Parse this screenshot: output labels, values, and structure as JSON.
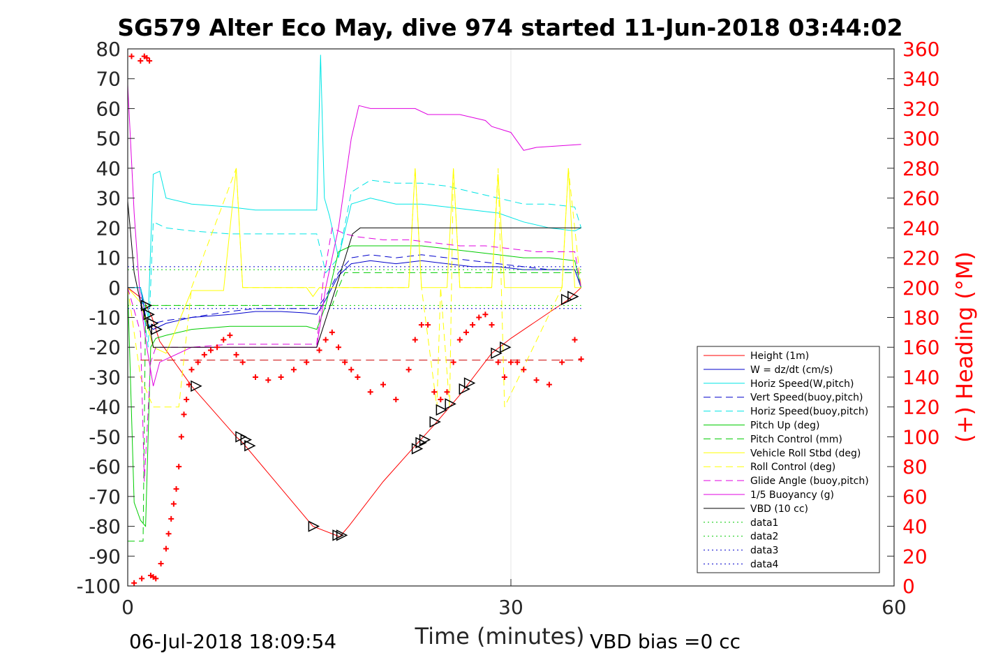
{
  "chart_data": {
    "type": "line",
    "title": "SG579 Alter Eco May, dive 974 started 11-Jun-2018 03:44:02",
    "xlabel": "Time (minutes)",
    "ylabel": "",
    "y2label": "(+) Heading (°M)",
    "xlim": [
      0,
      60
    ],
    "ylim": [
      -100,
      80
    ],
    "y2lim": [
      0,
      360
    ],
    "xticks": [
      "0",
      "30",
      "60"
    ],
    "xtick_values": [
      0,
      30,
      60
    ],
    "yticks": [
      "80",
      "70",
      "60",
      "50",
      "40",
      "30",
      "20",
      "10",
      "0",
      "-10",
      "-20",
      "-30",
      "-40",
      "-50",
      "-60",
      "-70",
      "-80",
      "-90",
      "-100"
    ],
    "ytick_values": [
      80,
      70,
      60,
      50,
      40,
      30,
      20,
      10,
      0,
      -10,
      -20,
      -30,
      -40,
      -50,
      -60,
      -70,
      -80,
      -90,
      -100
    ],
    "y2ticks": [
      "360",
      "340",
      "320",
      "300",
      "280",
      "260",
      "240",
      "220",
      "200",
      "180",
      "160",
      "140",
      "120",
      "100",
      "80",
      "60",
      "40",
      "20",
      "0"
    ],
    "y2tick_values": [
      360,
      340,
      320,
      300,
      280,
      260,
      240,
      220,
      200,
      180,
      160,
      140,
      120,
      100,
      80,
      60,
      40,
      20,
      0
    ],
    "grid_x": [
      30
    ],
    "legend_position": "lower-right",
    "footer_left": "06-Jul-2018 18:09:54",
    "footer_right": "VBD bias =0 cc",
    "series": [
      {
        "name": "Height (1m)",
        "color": "#ff0000",
        "style": "solid",
        "x": [
          0,
          1.2,
          1.9,
          2.5,
          5,
          8.5,
          9,
          14.5,
          16.3,
          16.6,
          17.3,
          20,
          22.5,
          24,
          26,
          28.5,
          30,
          34.5,
          35.5
        ],
        "y": [
          0,
          -4,
          -10,
          -18,
          -33,
          -50,
          -52,
          -80,
          -83,
          -83.5,
          -80,
          -65,
          -53,
          -46,
          -36,
          -22,
          -17,
          -4,
          0
        ]
      },
      {
        "name": "W = dz/dt (cm/s)",
        "color": "#0000cc",
        "style": "solid",
        "x": [
          0,
          1,
          1.5,
          2,
          3,
          5,
          8,
          10,
          12,
          14,
          14.8,
          15.5,
          16.5,
          17.5,
          19,
          21,
          23,
          25,
          27,
          29,
          31,
          33,
          35,
          35.5
        ],
        "y": [
          0,
          0,
          -12,
          -14,
          -12,
          -10,
          -9,
          -8,
          -8,
          -8.5,
          -9,
          -4,
          4,
          8,
          9,
          8,
          9,
          8,
          7,
          7,
          6,
          6,
          6,
          0
        ]
      },
      {
        "name": "Horiz Speed(W,pitch)",
        "color": "#00e5e5",
        "style": "solid",
        "x": [
          0,
          1,
          1.6,
          2,
          2.5,
          3,
          5,
          8,
          10,
          12,
          14,
          14.8,
          15.1,
          15.4,
          15.8,
          16.5,
          17.5,
          19,
          21,
          23,
          25,
          27,
          29,
          31,
          33,
          35,
          35.5
        ],
        "y": [
          0,
          0,
          -10,
          38,
          39,
          30,
          28,
          27,
          26,
          26,
          26,
          26,
          78,
          30,
          24,
          10,
          28,
          30,
          28,
          28,
          27,
          26,
          25,
          22,
          20,
          19,
          20
        ]
      },
      {
        "name": "Vert Speed(buoy,pitch)",
        "color": "#0000cc",
        "style": "dash",
        "x": [
          0,
          1,
          1.5,
          2,
          3,
          5,
          8,
          10,
          12,
          14,
          14.8,
          15.5,
          16.5,
          17.5,
          19,
          21,
          23,
          25,
          27,
          29,
          31,
          33,
          35,
          35.5
        ],
        "y": [
          0,
          0,
          -14,
          -12,
          -11,
          -10,
          -8,
          -7,
          -7,
          -7,
          -7,
          -3,
          5,
          10,
          11,
          10,
          11,
          10,
          9,
          8,
          7,
          6,
          6,
          0
        ]
      },
      {
        "name": "Horiz Speed(buoy,pitch)",
        "color": "#00e5e5",
        "style": "dash",
        "x": [
          0,
          1,
          1.6,
          2,
          3,
          5,
          8,
          10,
          12,
          14,
          14.8,
          15.5,
          16.5,
          17.5,
          19,
          21,
          23,
          25,
          27,
          29,
          31,
          33,
          35,
          35.5
        ],
        "y": [
          0,
          0,
          -20,
          22,
          20,
          19,
          18,
          18,
          18,
          18,
          18,
          5,
          10,
          32,
          36,
          35,
          35,
          34,
          32,
          30,
          28,
          28,
          27,
          20
        ]
      },
      {
        "name": "Pitch Up (deg)",
        "color": "#00cc00",
        "style": "solid",
        "x": [
          0,
          0.5,
          1,
          1.4,
          1.8,
          2.2,
          3,
          5,
          8,
          10,
          12,
          14,
          14.8,
          15.5,
          16.5,
          17.5,
          19,
          21,
          23,
          25,
          27,
          29,
          31,
          33,
          35,
          35.5
        ],
        "y": [
          0,
          -72,
          -78,
          -80,
          -20,
          -17,
          -16,
          -14,
          -13,
          -13,
          -13,
          -13,
          -14,
          -6,
          12,
          14,
          14,
          14,
          14,
          13,
          12,
          11,
          10,
          10,
          9,
          0
        ]
      },
      {
        "name": "Pitch Control (mm)",
        "color": "#00cc00",
        "style": "dash",
        "x": [
          0,
          0.5,
          1.2,
          1.4,
          16,
          16.5,
          17,
          35.5
        ],
        "y": [
          -85,
          -85,
          -85,
          -6,
          -6,
          0,
          5,
          5
        ]
      },
      {
        "name": "Vehicle Roll Stbd (deg)",
        "color": "#ffff00",
        "style": "solid",
        "x": [
          0,
          1,
          2,
          3,
          5,
          7.5,
          8.5,
          9,
          14,
          14.5,
          15,
          16,
          22,
          22.5,
          23,
          25,
          25.5,
          26,
          26.5,
          28.5,
          29,
          29.5,
          34,
          34.5,
          35,
          35.5
        ],
        "y": [
          0,
          -5,
          -20,
          -22,
          -1,
          -1,
          40,
          0,
          0,
          -3,
          0,
          0,
          0,
          40,
          0,
          0,
          40,
          0,
          0,
          0,
          38,
          0,
          0,
          40,
          0,
          0
        ]
      },
      {
        "name": "Roll Control (deg)",
        "color": "#ffff00",
        "style": "dash",
        "x": [
          0,
          1,
          2,
          3,
          4,
          5,
          8.5,
          9,
          22,
          22.5,
          23,
          24.2,
          24.5,
          25.2,
          25.5,
          26,
          28.5,
          29,
          29.5,
          34,
          34.5,
          35.5
        ],
        "y": [
          0,
          -30,
          -40,
          -40,
          -40,
          0,
          40,
          0,
          0,
          40,
          0,
          -40,
          0,
          -40,
          40,
          0,
          0,
          40,
          -40,
          0,
          40,
          0
        ]
      },
      {
        "name": "Glide Angle (buoy,pitch)",
        "color": "#e000e0",
        "style": "dash",
        "x": [
          0,
          1,
          1.3,
          1.8,
          2.2,
          3,
          5,
          8,
          10,
          14,
          14.8,
          15.3,
          16,
          17,
          18,
          20,
          22,
          24,
          26,
          28,
          30,
          32,
          34,
          35,
          35.5
        ],
        "y": [
          0,
          -15,
          -65,
          -25,
          -20,
          -20,
          -20,
          -19,
          -19,
          -19,
          -19,
          2,
          20,
          18,
          17,
          16,
          16,
          15,
          14,
          14,
          13,
          12,
          12,
          12,
          0
        ]
      },
      {
        "name": "1/5 Buoyancy (g)",
        "color": "#e000e0",
        "style": "solid",
        "x": [
          0,
          0.5,
          1,
          1.5,
          2,
          2.5,
          5,
          14.8,
          15.5,
          16.5,
          17.5,
          18.1,
          19,
          22.5,
          23.5,
          26,
          28,
          28.5,
          30,
          31,
          32,
          35.5
        ],
        "y": [
          68,
          25,
          -5,
          -20,
          -33,
          -25,
          -20,
          -20,
          0,
          20,
          50,
          61,
          60,
          60,
          58,
          58,
          56,
          54,
          52,
          46,
          47,
          48
        ]
      },
      {
        "name": "VBD (10 cc)",
        "color": "#000000",
        "style": "solid",
        "x": [
          0,
          0.5,
          1,
          1.8,
          2,
          14.8,
          16.3,
          17.6,
          18.2,
          19,
          35.5
        ],
        "y": [
          29,
          5,
          -5,
          -15,
          -20,
          -20,
          0,
          18,
          20,
          20,
          20
        ]
      },
      {
        "name": "data1",
        "color": "#00cc00",
        "style": "dot",
        "x": [
          0,
          35.5
        ],
        "y": [
          -6,
          -6
        ]
      },
      {
        "name": "data2",
        "color": "#00cc00",
        "style": "dot",
        "x": [
          0,
          35.5
        ],
        "y": [
          6,
          6
        ]
      },
      {
        "name": "data3",
        "color": "#0000cc",
        "style": "dot",
        "x": [
          0,
          35.5
        ],
        "y": [
          7,
          7
        ]
      },
      {
        "name": "data4",
        "color": "#0000cc",
        "style": "dot",
        "x": [
          0,
          35.5
        ],
        "y": [
          -7,
          -7
        ]
      }
    ],
    "reference_lines": [
      {
        "color": "#cc0000",
        "style": "dash",
        "y": -24.3,
        "x": [
          1,
          35.5
        ]
      }
    ],
    "heading_markers": {
      "color": "#ff0000",
      "x": [
        0.3,
        1,
        1.3,
        1.5,
        1.7,
        0.5,
        1.1,
        1.8,
        2,
        2.2,
        2.6,
        3,
        3.2,
        3.4,
        3.6,
        3.8,
        4,
        4.2,
        4.4,
        4.6,
        4.8,
        5,
        5.5,
        6,
        6.5,
        7,
        7.5,
        8,
        8.5,
        9,
        10,
        11,
        12,
        13,
        14,
        15,
        15.5,
        16,
        16.5,
        17,
        17.5,
        18,
        19,
        20,
        21,
        22,
        22.5,
        23,
        23.5,
        24,
        24.5,
        25,
        25.5,
        26,
        26.5,
        27,
        27.5,
        28,
        28.5,
        29,
        29.5,
        30,
        30.5,
        31,
        32,
        33,
        34,
        35,
        35.5
      ],
      "y": [
        355,
        352,
        355,
        354,
        352,
        2,
        5,
        7,
        6,
        5,
        15,
        25,
        35,
        45,
        55,
        65,
        80,
        100,
        115,
        125,
        135,
        145,
        150,
        155,
        158,
        160,
        165,
        168,
        155,
        150,
        140,
        138,
        140,
        145,
        150,
        158,
        165,
        170,
        160,
        150,
        145,
        140,
        130,
        135,
        125,
        145,
        165,
        175,
        175,
        130,
        125,
        130,
        150,
        165,
        170,
        175,
        180,
        182,
        175,
        150,
        140,
        150,
        150,
        145,
        138,
        135,
        150,
        165,
        152
      ],
      "y_axis": "right"
    },
    "triangle_markers": {
      "color": "#000000",
      "x": [
        1.4,
        1.6,
        1.9,
        2.2,
        5.3,
        8.8,
        9.2,
        9.5,
        14.5,
        16.4,
        16.7,
        22.6,
        22.9,
        23.2,
        24,
        24.5,
        25.2,
        26.3,
        26.7,
        28.8,
        29.5,
        34.3,
        34.8
      ],
      "y": [
        -6,
        -9,
        -12,
        -14,
        -33,
        -50,
        -51,
        -53,
        -80,
        -83,
        -83,
        -54,
        -52,
        -51,
        -45,
        -41,
        -39,
        -34,
        -32,
        -22,
        -20,
        -4,
        -3
      ]
    }
  }
}
